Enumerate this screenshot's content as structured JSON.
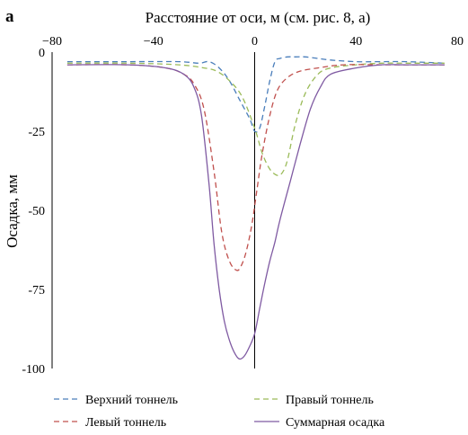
{
  "chart_data": {
    "type": "line",
    "panel_label": "а",
    "xlabel": "Расстояние от оси, м (см. рис. 8, а)",
    "ylabel": "Осадка, мм",
    "xlim": [
      -80,
      80
    ],
    "ylim": [
      -100,
      0
    ],
    "x_ticks": [
      -80,
      -40,
      0,
      40,
      80
    ],
    "y_ticks": [
      0,
      -25,
      -50,
      -75,
      -100
    ],
    "x_tick_labels": [
      "−80",
      "−40",
      "0",
      "40",
      "80"
    ],
    "y_tick_labels": [
      "0",
      "-25",
      "-50",
      "-75",
      "-100"
    ],
    "x_axis_position": "top",
    "grid": false,
    "legend_position": "bottom",
    "series": [
      {
        "name": "Верхний тоннель",
        "color": "#4a7ebb",
        "dash": "dashed",
        "x": [
          -74,
          -50,
          -30,
          -22,
          -18,
          -14,
          -10,
          -6,
          -2,
          0,
          2,
          4,
          6,
          8,
          10,
          13,
          16,
          20,
          25,
          30,
          40,
          50,
          60,
          75
        ],
        "y": [
          -3,
          -3,
          -3,
          -3.5,
          -3,
          -5,
          -9,
          -15,
          -21,
          -25,
          -24,
          -17,
          -9,
          -3,
          -2,
          -1.5,
          -1.5,
          -1.5,
          -2,
          -2.5,
          -3,
          -3,
          -3,
          -3.5
        ]
      },
      {
        "name": "Правый тоннель",
        "color": "#9bbb59",
        "dash": "dashed",
        "x": [
          -74,
          -50,
          -30,
          -20,
          -15,
          -10,
          -5,
          0,
          3,
          6,
          9,
          11,
          13,
          16,
          20,
          25,
          30,
          40,
          50,
          60,
          75
        ],
        "y": [
          -3.5,
          -3.5,
          -4,
          -5,
          -6,
          -9,
          -14,
          -24,
          -32,
          -37,
          -39,
          -38,
          -34,
          -23,
          -13,
          -7,
          -5,
          -4,
          -3.5,
          -3.5,
          -3.5
        ]
      },
      {
        "name": "Левый тоннель",
        "color": "#c0504d",
        "dash": "dashed",
        "x": [
          -74,
          -50,
          -35,
          -28,
          -24,
          -20,
          -16,
          -13,
          -10,
          -7,
          -5,
          -3,
          -1,
          1,
          3,
          6,
          9,
          13,
          18,
          25,
          35,
          50,
          60,
          75
        ],
        "y": [
          -4,
          -4,
          -5,
          -7,
          -10,
          -18,
          -38,
          -57,
          -66,
          -69,
          -67,
          -62,
          -54,
          -43,
          -32,
          -20,
          -12,
          -8,
          -6,
          -5,
          -4,
          -4,
          -4,
          -4
        ]
      },
      {
        "name": "Суммарная осадка",
        "color": "#7f5aa2",
        "dash": "solid",
        "x": [
          -74,
          -50,
          -35,
          -28,
          -24,
          -21,
          -18,
          -16,
          -14,
          -12,
          -10,
          -8,
          -6,
          -4,
          -2,
          0,
          2,
          4,
          6,
          8,
          10,
          14,
          18,
          22,
          26,
          30,
          40,
          50,
          60,
          75
        ],
        "y": [
          -4,
          -4,
          -5,
          -7,
          -11,
          -20,
          -42,
          -61,
          -75,
          -85,
          -91,
          -95,
          -97,
          -96,
          -93,
          -89,
          -81,
          -73,
          -66,
          -60,
          -53,
          -41,
          -29,
          -18,
          -11,
          -7,
          -5,
          -4,
          -4,
          -4
        ]
      }
    ]
  }
}
